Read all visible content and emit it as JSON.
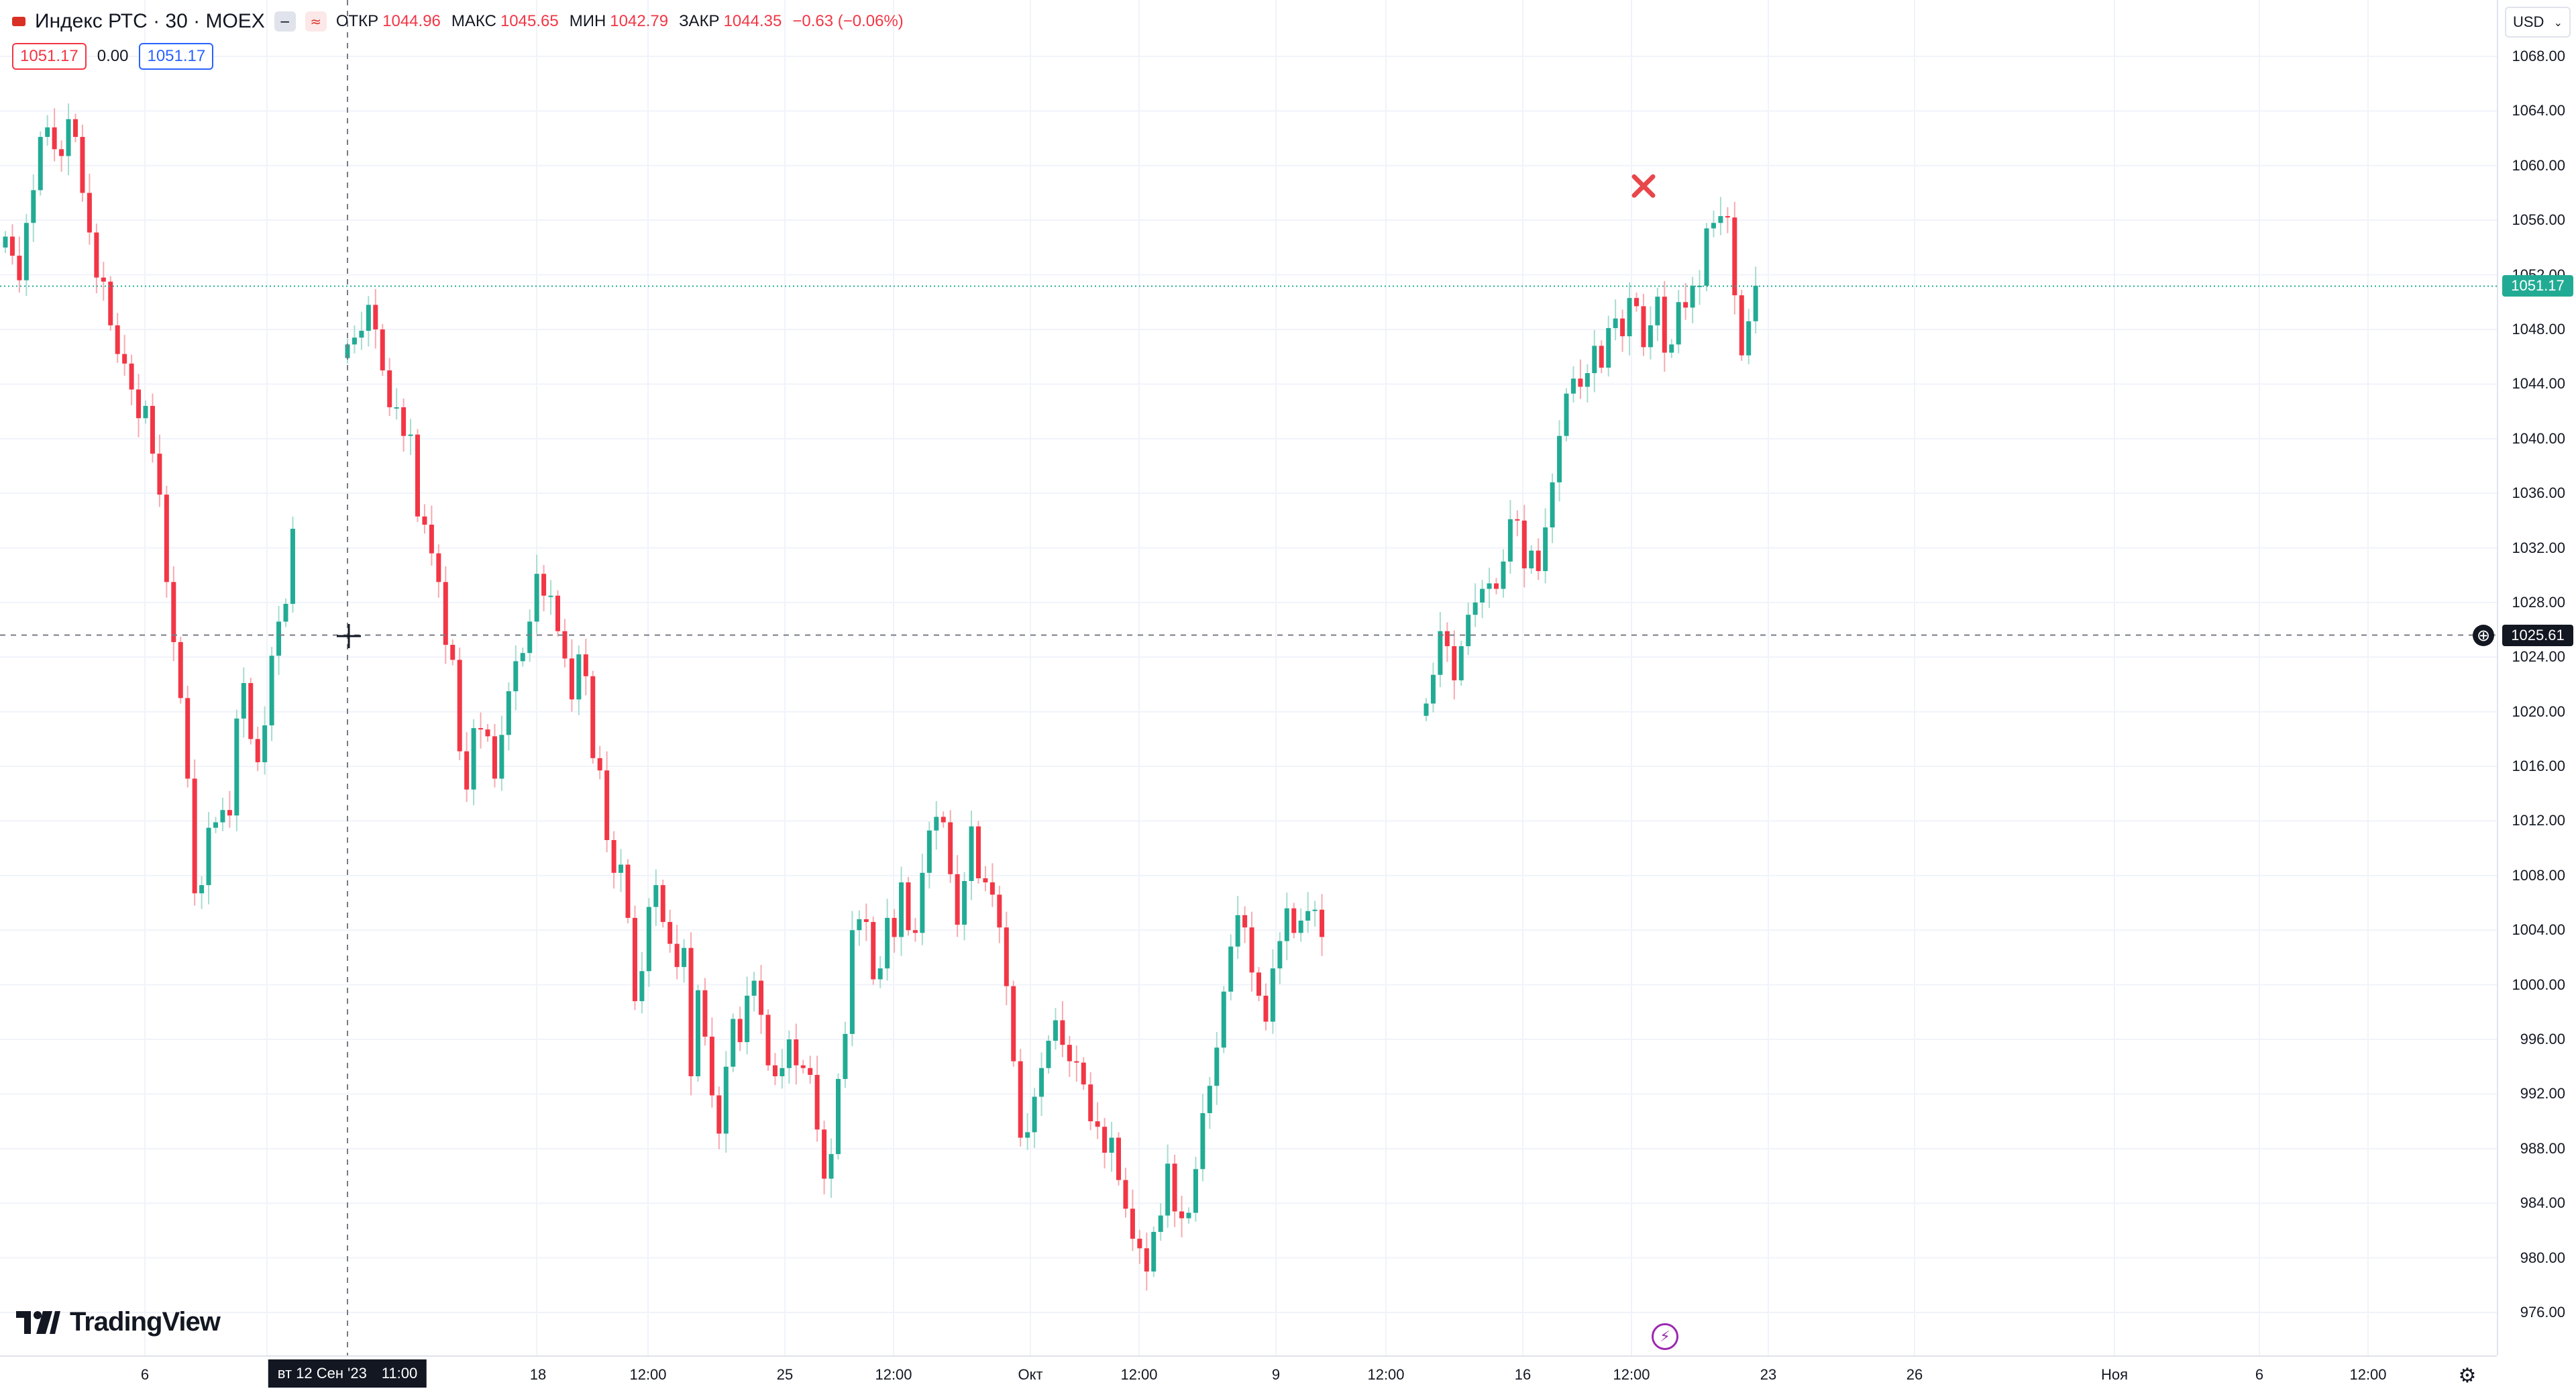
{
  "legend": {
    "title": "Индекс РТС · 30 · MOEX",
    "open_label": "ОТКР",
    "open_value": "1044.96",
    "high_label": "МАКС",
    "high_value": "1045.65",
    "low_label": "МИН",
    "low_value": "1042.79",
    "close_label": "ЗАКР",
    "close_value": "1044.35",
    "change": "−0.63 (−0.06%)",
    "sell_price": "1051.17",
    "spread": "0.00",
    "buy_price": "1051.17"
  },
  "price_axis": {
    "currency": "USD",
    "labels": [
      "1068.00",
      "1064.00",
      "1060.00",
      "1056.00",
      "1052.00",
      "1048.00",
      "1044.00",
      "1040.00",
      "1036.00",
      "1032.00",
      "1028.00",
      "1024.00",
      "1020.00",
      "1016.00",
      "1012.00",
      "1008.00",
      "1004.00",
      "1000.00",
      "996.00",
      "992.00",
      "988.00",
      "984.00",
      "980.00",
      "976.00"
    ],
    "current_price": "1051.17",
    "crosshair_price": "1025.61"
  },
  "time_axis": {
    "labels": [
      "6",
      "18",
      "12:00",
      "25",
      "12:00",
      "Окт",
      "12:00",
      "9",
      "12:00",
      "16",
      "12:00",
      "23",
      "26",
      "Ноя",
      "6",
      "12:00"
    ],
    "crosshair_date": "вт 12 Сен '23",
    "crosshair_time": "11:00"
  },
  "brand": "TradingView",
  "colors": {
    "up": "#22ab94",
    "down": "#f23645",
    "wick_up": "#a5dcd0",
    "wick_down": "#f7a9b0",
    "grid": "#f0f3fa"
  },
  "icons": [
    "flag-icon",
    "minimize-icon",
    "compare-icon",
    "currency-dropdown-icon",
    "add-alert-icon",
    "settings-icon",
    "lightning-icon",
    "cross-mark-icon",
    "crosshair-icon"
  ],
  "chart_data": {
    "type": "candlestick",
    "ylim": [
      974,
      1070
    ],
    "series": [
      {
        "segment": 1,
        "close": [
          1054.8,
          1053.4,
          1051.6,
          1055.8,
          1058.2,
          1062.1,
          1062.8,
          1061.2,
          1060.7,
          1063.4,
          1062.1,
          1058.0,
          1055.1,
          1051.8,
          1051.5,
          1048.3,
          1046.2,
          1045.5,
          1043.6,
          1041.5,
          1042.4,
          1038.9,
          1035.9,
          1029.5,
          1025.1,
          1021.0,
          1015.1,
          1006.7,
          1007.3,
          1011.5,
          1011.9,
          1012.8,
          1012.4,
          1019.5,
          1022.1,
          1018.0,
          1016.3,
          1019.0,
          1024.1,
          1026.6,
          1027.9,
          1033.4
        ]
      },
      {
        "segment": 2,
        "close": [
          1046.9,
          1047.4,
          1047.9,
          1049.8,
          1048.0,
          1045.0,
          1042.3,
          1042.3,
          1040.2,
          1040.3,
          1034.3,
          1033.7,
          1031.6,
          1029.5,
          1024.9,
          1023.8,
          1017.1,
          1014.3,
          1018.8,
          1018.7,
          1018.2,
          1015.1,
          1018.3,
          1021.5,
          1023.7,
          1024.3,
          1026.6,
          1030.1,
          1028.5,
          1028.5,
          1025.9,
          1023.9,
          1020.9,
          1024.2,
          1022.6,
          1016.6,
          1015.7,
          1010.6,
          1008.2,
          1008.8,
          1004.9,
          998.8,
          1001.0,
          1005.7,
          1007.3,
          1004.6,
          1003.0,
          1001.3,
          1002.7,
          993.3,
          999.6,
          996.2,
          991.9,
          989.1,
          994.0,
          997.5,
          995.8,
          999.2,
          1000.3,
          997.8,
          994.1,
          993.3,
          993.9,
          996.0,
          994.1,
          993.9,
          993.4,
          989.4,
          985.8,
          987.6,
          993.1,
          996.4,
          1004.0,
          1004.8,
          1004.6,
          1000.4,
          1001.2,
          1004.9,
          1003.5,
          1007.5,
          1004.0,
          1003.8,
          1008.2,
          1011.3,
          1012.3,
          1011.9,
          1008.1,
          1004.4,
          1007.6,
          1011.6,
          1007.8,
          1007.5,
          1006.6,
          1004.2,
          999.9,
          994.4,
          988.8,
          989.2,
          991.8,
          993.9,
          995.9,
          997.4,
          995.6,
          994.4,
          994.3,
          992.7,
          990.0,
          989.6,
          987.7,
          988.8,
          985.7,
          983.6,
          981.4,
          980.7,
          979.0,
          981.9,
          983.1,
          986.9,
          983.4,
          982.9,
          983.3,
          986.5,
          990.6,
          992.6,
          995.4,
          999.5,
          1002.8,
          1005.1,
          1004.2,
          1000.9,
          999.2,
          997.3,
          1001.2,
          1003.2,
          1005.6,
          1003.8,
          1004.7,
          1005.4,
          1005.5,
          1003.5
        ]
      },
      {
        "segment": 3,
        "close": [
          1020.6,
          1022.7,
          1025.9,
          1024.8,
          1022.3,
          1024.8,
          1027.1,
          1028.0,
          1029.0,
          1029.4,
          1029.0,
          1031.0,
          1034.1,
          1034.0,
          1030.5,
          1031.8,
          1030.3,
          1033.5,
          1036.8,
          1040.2,
          1043.3,
          1044.4,
          1043.8,
          1044.8,
          1046.8,
          1045.2,
          1048.1,
          1048.8,
          1047.5,
          1050.3,
          1049.7,
          1046.7,
          1048.3,
          1050.4,
          1046.3,
          1046.9,
          1050.0,
          1049.6,
          1051.2,
          1051.2,
          1055.4,
          1055.8,
          1056.3,
          1056.2,
          1050.5,
          1046.1,
          1048.6,
          1051.2
        ]
      }
    ],
    "markers": [
      {
        "type": "cross",
        "price": 1058.5
      }
    ]
  }
}
